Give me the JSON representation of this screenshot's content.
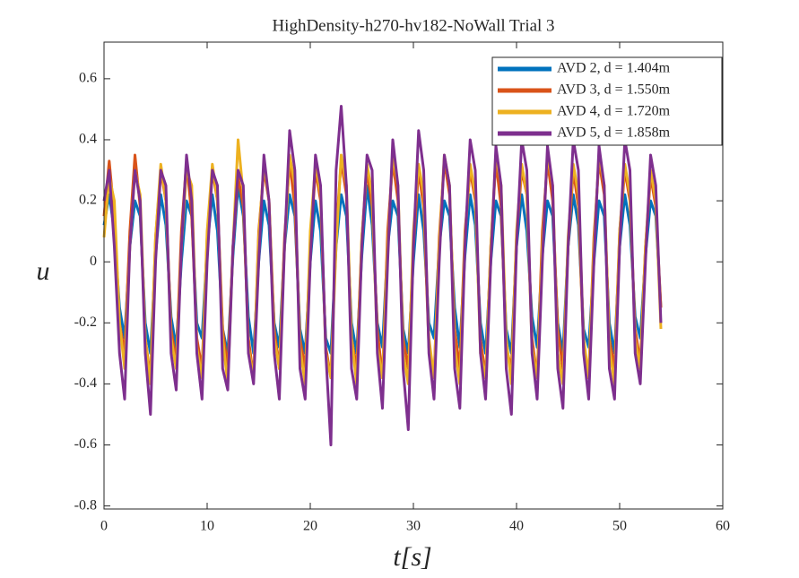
{
  "chart_data": {
    "type": "line",
    "title": "HighDensity-h270-hv182-NoWall Trial 3",
    "x_label": "t[s]",
    "y_label": "u",
    "xlim": [
      0,
      60
    ],
    "xticks": [
      0,
      10,
      20,
      30,
      40,
      50,
      60
    ],
    "ylim": [
      -0.81,
      0.72
    ],
    "yticks": [
      -0.8,
      -0.6,
      -0.4,
      -0.2,
      0,
      0.2,
      0.4,
      0.6
    ],
    "grid": false,
    "box": true,
    "legend": "upper-right",
    "x": [
      0,
      0.5,
      1,
      1.5,
      2,
      2.5,
      3,
      3.5,
      4,
      4.5,
      5,
      5.5,
      6,
      6.5,
      7,
      7.5,
      8,
      8.5,
      9,
      9.5,
      10,
      10.5,
      11,
      11.5,
      12,
      12.5,
      13,
      13.5,
      14,
      14.5,
      15,
      15.5,
      16,
      16.5,
      17,
      17.5,
      18,
      18.5,
      19,
      19.5,
      20,
      20.5,
      21,
      21.5,
      22,
      22.5,
      23,
      23.5,
      24,
      24.5,
      25,
      25.5,
      26,
      26.5,
      27,
      27.5,
      28,
      28.5,
      29,
      29.5,
      30,
      30.5,
      31,
      31.5,
      32,
      32.5,
      33,
      33.5,
      34,
      34.5,
      35,
      35.5,
      36,
      36.5,
      37,
      37.5,
      38,
      38.5,
      39,
      39.5,
      40,
      40.5,
      41,
      41.5,
      42,
      42.5,
      43,
      43.5,
      44,
      44.5,
      45,
      45.5,
      46,
      46.5,
      47,
      47.5,
      48,
      48.5,
      49,
      49.5,
      50,
      50.5,
      51,
      51.5,
      52,
      52.5,
      53,
      53.5,
      54
    ],
    "series": [
      {
        "name": "AVD 2, d = 1.404m",
        "color": "#0072bd",
        "values": [
          0.12,
          0.22,
          0.1,
          -0.15,
          -0.25,
          0.05,
          0.2,
          0.15,
          -0.2,
          -0.3,
          0.02,
          0.22,
          0.12,
          -0.18,
          -0.28,
          0.0,
          0.2,
          0.15,
          -0.2,
          -0.25,
          0.05,
          0.22,
          0.1,
          -0.22,
          -0.3,
          0.02,
          0.25,
          0.15,
          -0.18,
          -0.3,
          0.0,
          0.2,
          0.12,
          -0.2,
          -0.28,
          0.05,
          0.22,
          0.15,
          -0.22,
          -0.3,
          0.0,
          0.2,
          0.1,
          -0.25,
          -0.3,
          0.05,
          0.22,
          0.15,
          -0.2,
          -0.3,
          0.02,
          0.25,
          0.12,
          -0.2,
          -0.28,
          0.05,
          0.2,
          0.15,
          -0.22,
          -0.3,
          0.0,
          0.22,
          0.1,
          -0.2,
          -0.25,
          0.05,
          0.2,
          0.15,
          -0.15,
          -0.28,
          0.02,
          0.22,
          0.12,
          -0.2,
          -0.3,
          0.0,
          0.2,
          0.15,
          -0.22,
          -0.3,
          0.05,
          0.22,
          0.1,
          -0.18,
          -0.28,
          0.02,
          0.2,
          0.15,
          -0.2,
          -0.3,
          0.05,
          0.22,
          0.12,
          -0.22,
          -0.28,
          0.0,
          0.2,
          0.15,
          -0.2,
          -0.3,
          0.05,
          0.22,
          0.12,
          -0.18,
          -0.25,
          0.02,
          0.2,
          0.15,
          -0.15
        ]
      },
      {
        "name": "AVD 3, d = 1.550m",
        "color": "#d95319",
        "values": [
          0.15,
          0.33,
          0.15,
          -0.2,
          -0.3,
          0.1,
          0.35,
          0.18,
          -0.25,
          -0.38,
          0.08,
          0.3,
          0.2,
          -0.22,
          -0.33,
          0.1,
          0.33,
          0.15,
          -0.25,
          -0.35,
          0.08,
          0.3,
          0.2,
          -0.22,
          -0.35,
          0.05,
          0.28,
          0.18,
          -0.25,
          -0.38,
          0.1,
          0.3,
          0.2,
          -0.22,
          -0.35,
          0.08,
          0.33,
          0.18,
          -0.25,
          -0.35,
          0.05,
          0.3,
          0.2,
          -0.28,
          -0.38,
          0.1,
          0.33,
          0.22,
          -0.25,
          -0.35,
          0.08,
          0.3,
          0.18,
          -0.22,
          -0.38,
          0.1,
          0.33,
          0.2,
          -0.25,
          -0.35,
          0.05,
          0.3,
          0.18,
          -0.28,
          -0.38,
          0.08,
          0.33,
          0.22,
          -0.22,
          -0.35,
          0.1,
          0.3,
          0.2,
          -0.25,
          -0.38,
          0.05,
          0.33,
          0.18,
          -0.28,
          -0.35,
          0.08,
          0.3,
          0.22,
          -0.25,
          -0.38,
          0.1,
          0.33,
          0.2,
          -0.22,
          -0.35,
          0.05,
          0.3,
          0.18,
          -0.28,
          -0.38,
          0.08,
          0.33,
          0.22,
          -0.25,
          -0.35,
          0.1,
          0.3,
          0.2,
          -0.22,
          -0.33,
          0.05,
          0.28,
          0.18,
          -0.15
        ]
      },
      {
        "name": "AVD 4, d = 1.720m",
        "color": "#edb120",
        "values": [
          0.08,
          0.28,
          0.2,
          -0.2,
          -0.35,
          0.05,
          0.3,
          0.22,
          -0.25,
          -0.4,
          0.08,
          0.32,
          0.2,
          -0.25,
          -0.35,
          0.05,
          0.3,
          0.25,
          -0.28,
          -0.38,
          0.1,
          0.32,
          0.2,
          -0.25,
          -0.4,
          0.05,
          0.4,
          0.22,
          -0.28,
          -0.38,
          0.08,
          0.32,
          0.2,
          -0.25,
          -0.35,
          0.05,
          0.35,
          0.25,
          -0.28,
          -0.4,
          0.1,
          0.32,
          0.22,
          -0.3,
          -0.38,
          0.05,
          0.35,
          0.25,
          -0.25,
          -0.4,
          0.08,
          0.32,
          0.22,
          -0.28,
          -0.38,
          0.05,
          0.35,
          0.25,
          -0.3,
          -0.4,
          0.1,
          0.32,
          0.22,
          -0.25,
          -0.38,
          0.05,
          0.35,
          0.25,
          -0.28,
          -0.4,
          0.08,
          0.32,
          0.22,
          -0.3,
          -0.38,
          0.05,
          0.35,
          0.25,
          -0.25,
          -0.4,
          0.1,
          0.32,
          0.22,
          -0.28,
          -0.38,
          0.05,
          0.35,
          0.25,
          -0.3,
          -0.4,
          0.08,
          0.32,
          0.22,
          -0.25,
          -0.38,
          0.05,
          0.35,
          0.25,
          -0.28,
          -0.4,
          0.1,
          0.32,
          0.22,
          -0.25,
          -0.35,
          0.05,
          0.3,
          0.2,
          -0.22
        ]
      },
      {
        "name": "AVD 5, d = 1.858m",
        "color": "#7e2f8e",
        "values": [
          0.2,
          0.3,
          0.05,
          -0.3,
          -0.45,
          0.05,
          0.3,
          0.2,
          -0.3,
          -0.5,
          0.0,
          0.3,
          0.25,
          -0.3,
          -0.42,
          0.05,
          0.35,
          0.2,
          -0.3,
          -0.45,
          0.0,
          0.3,
          0.25,
          -0.35,
          -0.42,
          0.05,
          0.3,
          0.25,
          -0.3,
          -0.4,
          0.0,
          0.35,
          0.2,
          -0.3,
          -0.45,
          0.05,
          0.43,
          0.3,
          -0.35,
          -0.45,
          0.0,
          0.35,
          0.25,
          -0.3,
          -0.6,
          0.3,
          0.51,
          0.25,
          -0.35,
          -0.45,
          0.05,
          0.35,
          0.3,
          -0.3,
          -0.48,
          0.0,
          0.4,
          0.25,
          -0.35,
          -0.55,
          0.05,
          0.43,
          0.3,
          -0.3,
          -0.45,
          0.0,
          0.35,
          0.25,
          -0.35,
          -0.48,
          0.05,
          0.4,
          0.3,
          -0.3,
          -0.45,
          0.0,
          0.38,
          0.25,
          -0.35,
          -0.5,
          0.05,
          0.4,
          0.3,
          -0.3,
          -0.45,
          0.0,
          0.38,
          0.25,
          -0.35,
          -0.48,
          0.05,
          0.4,
          0.3,
          -0.3,
          -0.45,
          0.0,
          0.38,
          0.25,
          -0.35,
          -0.45,
          0.05,
          0.4,
          0.3,
          -0.3,
          -0.4,
          0.0,
          0.35,
          0.25,
          -0.2
        ]
      }
    ]
  }
}
